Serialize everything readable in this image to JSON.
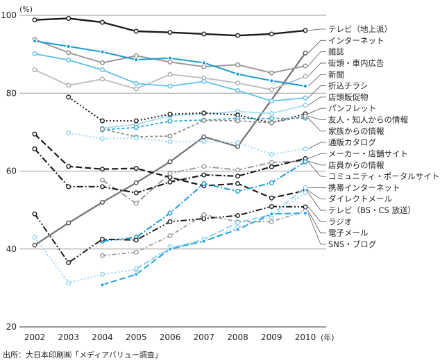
{
  "chart_data": {
    "type": "line",
    "unit_label": "(%)",
    "x_suffix": "(年)",
    "x": [
      2002,
      2003,
      2004,
      2005,
      2006,
      2007,
      2008,
      2009,
      2010
    ],
    "ylim": [
      20,
      100
    ],
    "yticks": [
      20,
      40,
      60,
      80,
      100
    ],
    "grid": "horizontal at 40, 60, 80, 100",
    "legend": "right, leader lines to series ends",
    "series": [
      {
        "name": "テレビ（地上派）",
        "color": "#1a1a1a",
        "dash": "solid",
        "width": 2.4,
        "marker": "#ffffff",
        "mstroke": "#1a1a1a",
        "values": [
          98.8,
          99.2,
          98.2,
          95.9,
          95.6,
          95.2,
          94.8,
          95.2,
          96.1
        ]
      },
      {
        "name": "インターネット",
        "color": "#707070",
        "dash": "solid",
        "width": 2.2,
        "marker": "#ffffff",
        "mstroke": "#555555",
        "values": [
          41.0,
          46.7,
          52.0,
          57.0,
          62.4,
          68.8,
          66.3,
          null,
          90.3
        ]
      },
      {
        "name": "雑誌",
        "color": "#9a9a9a",
        "dash": "solid",
        "width": 2.0,
        "marker": "#ffffff",
        "mstroke": "#888888",
        "values": [
          93.8,
          90.4,
          87.8,
          89.6,
          88.0,
          86.8,
          87.3,
          85.2,
          87.0
        ]
      },
      {
        "name": "街頭・車内広告",
        "color": "#c0c0c0",
        "dash": "solid",
        "width": 2.0,
        "marker": "#ffffff",
        "mstroke": "#aaaaaa",
        "values": [
          86.0,
          82.0,
          83.6,
          81.1,
          84.8,
          83.9,
          82.6,
          80.9,
          84.3
        ]
      },
      {
        "name": "新聞",
        "color": "#1a9ad6",
        "dash": "solid",
        "width": 2.0,
        "marker": "#1a9ad6",
        "mstroke": "#ffffff",
        "values": [
          93.4,
          92.0,
          90.6,
          88.6,
          89.0,
          87.8,
          84.9,
          83.2,
          81.8
        ]
      },
      {
        "name": "折込チラシ",
        "color": "#5cc0e8",
        "dash": "solid",
        "width": 1.8,
        "marker": "#ffffff",
        "mstroke": "#5cc0e8",
        "values": [
          90.1,
          88.5,
          86.0,
          82.5,
          81.8,
          83.0,
          80.7,
          78.0,
          78.8
        ]
      },
      {
        "name": "店頭販促物",
        "color": "#a8dcf2",
        "dash": "solid",
        "width": 1.8,
        "marker": "#ffffff",
        "mstroke": "#8fcfea",
        "values": [
          null,
          null,
          71.0,
          72.0,
          74.2,
          74.7,
          75.3,
          74.8,
          76.9
        ]
      },
      {
        "name": "パンフレット",
        "color": "#1a1a1a",
        "dash": "2,3",
        "width": 2.0,
        "marker": "#ffffff",
        "mstroke": "#1a1a1a",
        "values": [
          null,
          79.0,
          72.9,
          72.9,
          74.6,
          74.9,
          74.4,
          72.4,
          74.7
        ]
      },
      {
        "name": "家族からの情報",
        "color": "#29a7dd",
        "dash": "4,3",
        "width": 1.8,
        "marker": "#ffffff",
        "mstroke": "#29a7dd",
        "values": [
          null,
          null,
          70.6,
          71.2,
          72.8,
          73.1,
          73.5,
          73.5,
          73.6
        ]
      },
      {
        "name": "友人・知人からの情報",
        "color": "#8a8a8a",
        "dash": "4,3",
        "width": 1.8,
        "marker": "#ffffff",
        "mstroke": "#8a8a8a",
        "values": [
          null,
          null,
          70.8,
          68.8,
          69.0,
          73.0,
          72.9,
          72.4,
          74.1
        ]
      },
      {
        "name": "通販カタログ",
        "color": "#8fd3f1",
        "dash": "2,3",
        "width": 1.8,
        "marker": "#ffffff",
        "mstroke": "#8fd3f1",
        "values": [
          null,
          69.8,
          68.3,
          68.5,
          67.5,
          67.6,
          67.3,
          64.3,
          65.7
        ]
      },
      {
        "name": "ダイレクトメール",
        "color": "#1a1a1a",
        "dash": "9,4",
        "width": 2.2,
        "marker": "#ffffff",
        "mstroke": "#1a1a1a",
        "values": [
          69.5,
          61.2,
          60.5,
          60.7,
          58.4,
          56.2,
          56.8,
          53.1,
          55.0
        ]
      },
      {
        "name": "店員からの情報",
        "color": "#9a9a9a",
        "dash": "9,3,2,3",
        "width": 2.0,
        "marker": "#ffffff",
        "mstroke": "#9a9a9a",
        "values": [
          null,
          null,
          57.7,
          51.7,
          59.4,
          61.2,
          60.3,
          62.2,
          62.6
        ]
      },
      {
        "name": "メーカー・店舗サイト",
        "color": "#1a1a1a",
        "dash": "9,3,2,3",
        "width": 2.2,
        "marker": "#ffffff",
        "mstroke": "#1a1a1a",
        "values": [
          65.7,
          56.0,
          56.0,
          54.4,
          57.2,
          59.0,
          58.7,
          61.1,
          63.2
        ]
      },
      {
        "name": "コミュニティ・ポータルサイト",
        "color": "#1a9ad6",
        "dash": "9,3,2,3",
        "width": 2.0,
        "marker": "#ffffff",
        "mstroke": "#1a9ad6",
        "values": [
          null,
          null,
          42.0,
          43.0,
          49.2,
          56.8,
          54.8,
          57.0,
          62.4
        ]
      },
      {
        "name": "ラジオ",
        "color": "#1a1a1a",
        "dash": "9,3,2,3,2,3",
        "width": 2.0,
        "marker": "#ffffff",
        "mstroke": "#1a1a1a",
        "values": [
          49.0,
          36.5,
          42.5,
          42.3,
          47.0,
          47.8,
          48.6,
          50.9,
          50.8
        ]
      },
      {
        "name": "電子メール",
        "color": "#9a9a9a",
        "dash": "6,3,2,3",
        "width": 1.8,
        "marker": "#ffffff",
        "mstroke": "#9a9a9a",
        "values": [
          null,
          null,
          38.3,
          39.2,
          43.4,
          48.8,
          47.0,
          47.0,
          49.8
        ]
      },
      {
        "name": "テレビ（BS・CS 放送）",
        "color": "#8fd3f1",
        "dash": "2,3",
        "width": 1.8,
        "marker": "#ffffff",
        "mstroke": "#8fd3f1",
        "values": [
          43.0,
          31.3,
          33.5,
          34.7,
          40.6,
          42.0,
          45.5,
          48.2,
          54.5
        ]
      },
      {
        "name": "携帯インターネット",
        "color": "#8fd3f1",
        "dash": "9,4",
        "width": 2.0,
        "marker": "#ffffff",
        "mstroke": "#8fd3f1",
        "values": [
          null,
          null,
          null,
          35.0,
          40.0,
          42.5,
          46.8,
          48.8,
          55.8
        ]
      },
      {
        "name": "SNS・ブログ",
        "color": "#29a7dd",
        "dash": "9,4",
        "width": 2.0,
        "marker": "#29a7dd",
        "mstroke": "#ffffff",
        "values": [
          null,
          null,
          30.8,
          33.5,
          40.0,
          42.0,
          45.0,
          49.0,
          49.2
        ]
      }
    ],
    "source_note": "出所：大日本印刷㈱「メディアバリュー調査」"
  }
}
